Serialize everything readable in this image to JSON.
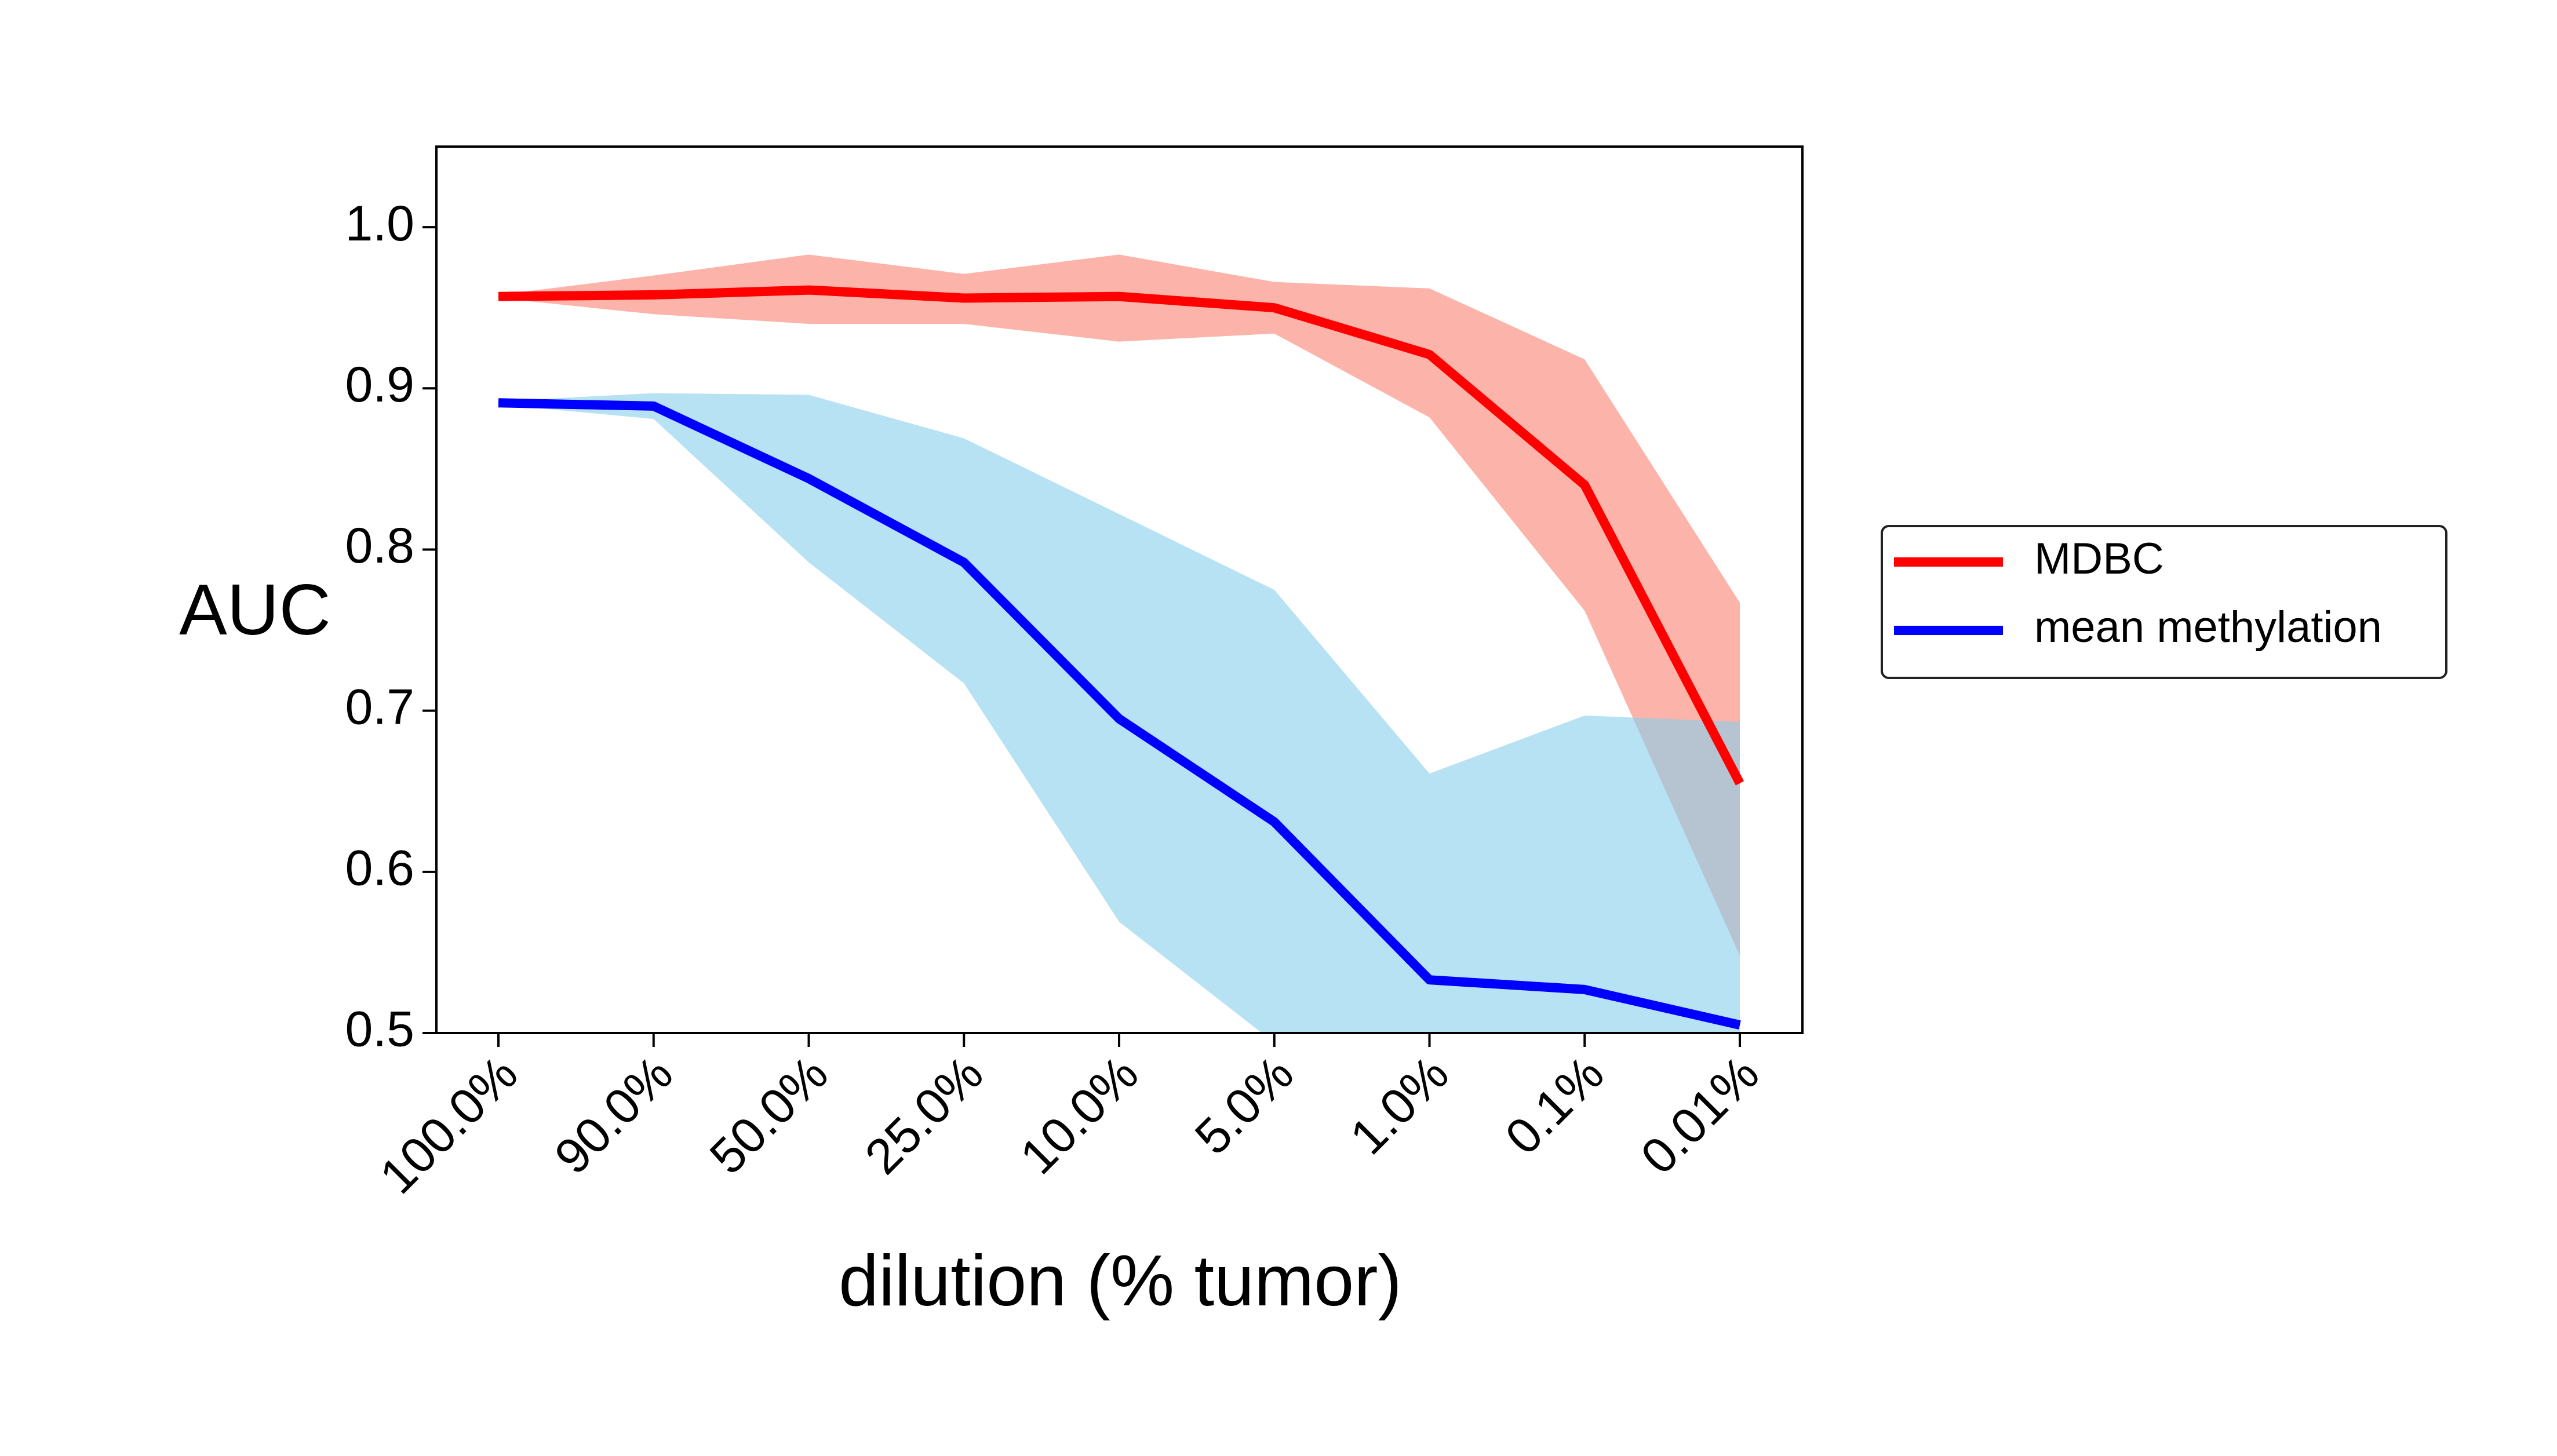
{
  "chart_data": {
    "type": "line",
    "title": "",
    "xlabel": "dilution (% tumor)",
    "ylabel": "AUC",
    "categories": [
      "100.0%",
      "90.0%",
      "50.0%",
      "25.0%",
      "10.0%",
      "5.0%",
      "1.0%",
      "0.1%",
      "0.01%"
    ],
    "ylim": [
      0.5,
      1.05
    ],
    "yticks": [
      0.5,
      0.6,
      0.7,
      0.8,
      0.9,
      1.0
    ],
    "ytick_labels": [
      "0.5",
      "0.6",
      "0.7",
      "0.8",
      "0.9",
      "1.0"
    ],
    "grid": false,
    "legend_position": "outside-right",
    "series": [
      {
        "name": "MDBC",
        "color": "#ff0000",
        "band_color": "#fa8072",
        "values": [
          0.957,
          0.958,
          0.961,
          0.956,
          0.957,
          0.95,
          0.921,
          0.84,
          0.655
        ],
        "upper": [
          0.958,
          0.97,
          0.983,
          0.971,
          0.983,
          0.966,
          0.962,
          0.918,
          0.767
        ],
        "lower": [
          0.956,
          0.946,
          0.94,
          0.94,
          0.929,
          0.934,
          0.882,
          0.762,
          0.548
        ]
      },
      {
        "name": "mean methylation",
        "color": "#0000ff",
        "band_color": "#87ceeb",
        "values": [
          0.891,
          0.889,
          0.844,
          0.792,
          0.695,
          0.631,
          0.533,
          0.527,
          0.505
        ],
        "upper": [
          0.892,
          0.897,
          0.896,
          0.869,
          0.822,
          0.775,
          0.661,
          0.697,
          0.693
        ],
        "lower": [
          0.89,
          0.881,
          0.792,
          0.717,
          0.569,
          0.494,
          0.43,
          0.416,
          0.419
        ]
      }
    ]
  }
}
